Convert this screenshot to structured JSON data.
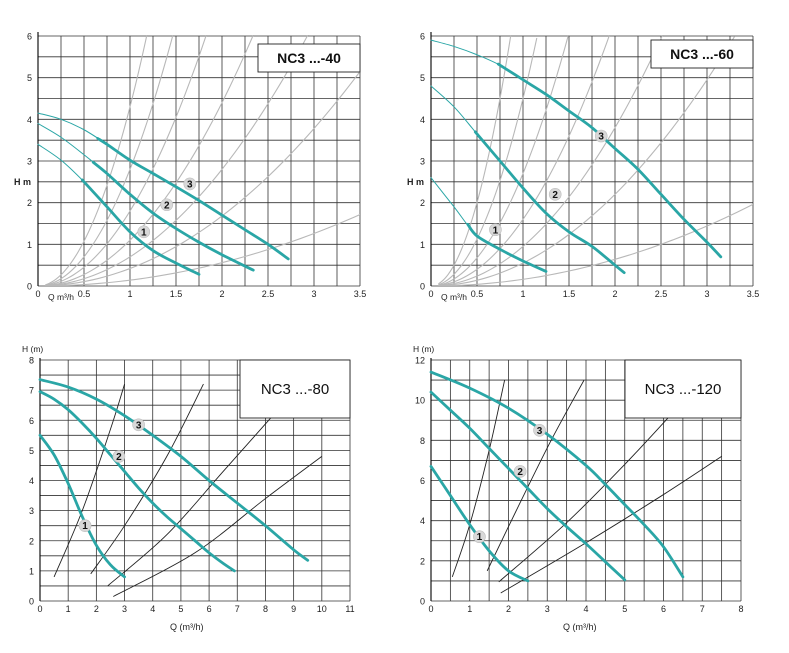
{
  "colors": {
    "curve": "#2aa6a6",
    "grid": "#333333",
    "system": "#b8b8b8",
    "system_dark": "#222222",
    "marker": "#d8d8d8"
  },
  "chart_data": [
    {
      "type": "line",
      "title": "NC3 ...-40",
      "xlabel": "Q m³/h",
      "ylabel": "H m",
      "xlim": [
        0,
        3.5
      ],
      "ylim": [
        0,
        6
      ],
      "xticks": [
        "0",
        "0.5",
        "1",
        "1.5",
        "2",
        "2.5",
        "3",
        "3.5"
      ],
      "yticks": [
        "0",
        "1",
        "2",
        "3",
        "4",
        "5",
        "6"
      ],
      "series": [
        {
          "name": "1",
          "x": [
            0.0,
            0.25,
            0.5,
            0.75,
            1.0,
            1.25,
            1.5,
            1.75
          ],
          "y": [
            3.4,
            3.02,
            2.5,
            1.9,
            1.3,
            0.85,
            0.55,
            0.28
          ],
          "bold_from": 0.5,
          "label_at": [
            1.15,
            1.3
          ]
        },
        {
          "name": "2",
          "x": [
            0.0,
            0.25,
            0.5,
            0.75,
            1.0,
            1.25,
            1.5,
            1.75,
            2.0,
            2.34
          ],
          "y": [
            3.9,
            3.57,
            3.15,
            2.7,
            2.2,
            1.75,
            1.38,
            1.05,
            0.75,
            0.38
          ],
          "bold_from": 0.6,
          "label_at": [
            1.4,
            1.95
          ]
        },
        {
          "name": "3",
          "x": [
            0.0,
            0.25,
            0.5,
            0.75,
            1.0,
            1.25,
            1.5,
            1.75,
            2.0,
            2.25,
            2.5,
            2.72
          ],
          "y": [
            4.15,
            4.0,
            3.75,
            3.4,
            3.02,
            2.7,
            2.38,
            2.05,
            1.7,
            1.35,
            1.0,
            0.65
          ],
          "bold_from": 0.65,
          "label_at": [
            1.65,
            2.45
          ]
        }
      ],
      "system_curves": [
        {
          "k": 4.3,
          "x_max": 1.25
        },
        {
          "k": 2.8,
          "x_max": 1.6
        },
        {
          "k": 1.8,
          "x_max": 1.9
        },
        {
          "k": 1.1,
          "x_max": 2.4
        },
        {
          "k": 0.7,
          "x_max": 2.95
        },
        {
          "k": 0.42,
          "x_max": 3.55
        },
        {
          "k": 0.14,
          "x_max": 3.55
        }
      ]
    },
    {
      "type": "line",
      "title": "NC3 ...-60",
      "xlabel": "Q m³/h",
      "ylabel": "H m",
      "xlim": [
        0,
        3.5
      ],
      "ylim": [
        0,
        6
      ],
      "xticks": [
        "0",
        "0.5",
        "1",
        "1.5",
        "2",
        "2.5",
        "3",
        "3.5"
      ],
      "yticks": [
        "0",
        "1",
        "2",
        "3",
        "4",
        "5",
        "6"
      ],
      "series": [
        {
          "name": "1",
          "x": [
            0.0,
            0.25,
            0.5,
            0.75,
            1.0,
            1.25
          ],
          "y": [
            2.6,
            1.9,
            1.2,
            0.88,
            0.6,
            0.35
          ],
          "bold_from": 0.4,
          "label_at": [
            0.7,
            1.35
          ]
        },
        {
          "name": "2",
          "x": [
            0.0,
            0.25,
            0.5,
            0.75,
            1.0,
            1.25,
            1.5,
            1.75,
            2.0,
            2.1
          ],
          "y": [
            4.8,
            4.3,
            3.65,
            3.0,
            2.35,
            1.75,
            1.3,
            0.95,
            0.5,
            0.32
          ],
          "bold_from": 0.5,
          "label_at": [
            1.35,
            2.2
          ]
        },
        {
          "name": "3",
          "x": [
            0.0,
            0.25,
            0.5,
            0.75,
            1.0,
            1.25,
            1.5,
            1.75,
            2.0,
            2.25,
            2.5,
            2.75,
            3.0,
            3.15
          ],
          "y": [
            5.9,
            5.75,
            5.55,
            5.3,
            4.95,
            4.6,
            4.2,
            3.8,
            3.3,
            2.8,
            2.2,
            1.6,
            1.05,
            0.7
          ],
          "bold_from": 0.75,
          "label_at": [
            1.85,
            3.6
          ]
        }
      ],
      "system_curves": [
        {
          "k": 8.0,
          "x_max": 0.88
        },
        {
          "k": 4.5,
          "x_max": 1.15
        },
        {
          "k": 2.7,
          "x_max": 1.5
        },
        {
          "k": 1.6,
          "x_max": 1.95
        },
        {
          "k": 0.95,
          "x_max": 2.55
        },
        {
          "k": 0.55,
          "x_max": 3.3
        },
        {
          "k": 0.16,
          "x_max": 3.55
        }
      ]
    },
    {
      "type": "line",
      "title": "NC3 ...-80",
      "xlabel": "Q (m³/h)",
      "ylabel": "H (m)",
      "xlim": [
        0,
        11
      ],
      "ylim": [
        0,
        8
      ],
      "xticks": [
        "0",
        "1",
        "2",
        "3",
        "4",
        "5",
        "6",
        "7",
        "8",
        "9",
        "10",
        "11"
      ],
      "yticks": [
        "0",
        "1",
        "2",
        "3",
        "4",
        "5",
        "6",
        "7",
        "8"
      ],
      "series": [
        {
          "name": "1",
          "x": [
            0.0,
            0.5,
            1.0,
            1.5,
            2.0,
            2.5,
            3.0
          ],
          "y": [
            5.5,
            4.85,
            3.9,
            2.8,
            1.85,
            1.2,
            0.8
          ],
          "bold_from": 0,
          "label_at": [
            1.6,
            2.5
          ]
        },
        {
          "name": "2",
          "x": [
            0.0,
            0.5,
            1.0,
            1.5,
            2.0,
            2.5,
            3.0,
            3.5,
            4.0,
            4.5,
            5.0,
            5.5,
            6.0,
            6.5,
            6.9
          ],
          "y": [
            6.95,
            6.7,
            6.35,
            5.9,
            5.4,
            4.85,
            4.3,
            3.75,
            3.25,
            2.8,
            2.4,
            2.0,
            1.6,
            1.25,
            1.0
          ],
          "bold_from": 0,
          "label_at": [
            2.8,
            4.8
          ]
        },
        {
          "name": "3",
          "x": [
            0.0,
            1.0,
            2.0,
            3.0,
            4.0,
            5.0,
            6.0,
            7.0,
            8.0,
            9.0,
            9.5
          ],
          "y": [
            7.35,
            7.1,
            6.7,
            6.15,
            5.5,
            4.8,
            4.0,
            3.25,
            2.5,
            1.7,
            1.35
          ],
          "bold_from": 0,
          "label_at": [
            3.5,
            5.85
          ]
        }
      ],
      "system_curves": [
        {
          "x": [
            0.5,
            1.5,
            2.5,
            3.0
          ],
          "y": [
            0.8,
            3.0,
            5.7,
            7.2
          ]
        },
        {
          "x": [
            1.8,
            3.0,
            4.5,
            5.8
          ],
          "y": [
            0.9,
            2.5,
            4.8,
            7.2
          ]
        },
        {
          "x": [
            2.4,
            4.5,
            6.5,
            8.4
          ],
          "y": [
            0.5,
            2.2,
            4.3,
            6.3
          ]
        },
        {
          "x": [
            2.6,
            5.5,
            8.0,
            10.0
          ],
          "y": [
            0.15,
            1.6,
            3.4,
            4.8
          ]
        }
      ]
    },
    {
      "type": "line",
      "title": "NC3 ...-120",
      "xlabel": "Q (m³/h)",
      "ylabel": "H (m)",
      "xlim": [
        0,
        8
      ],
      "ylim": [
        0,
        12
      ],
      "xticks": [
        "0",
        "1",
        "2",
        "3",
        "4",
        "5",
        "6",
        "7",
        "8"
      ],
      "yticks": [
        "0",
        "2",
        "4",
        "6",
        "8",
        "10",
        "12"
      ],
      "series": [
        {
          "name": "1",
          "x": [
            0.0,
            0.5,
            1.0,
            1.5,
            2.0,
            2.5
          ],
          "y": [
            6.7,
            5.25,
            3.8,
            2.5,
            1.5,
            1.0
          ],
          "bold_from": 0,
          "label_at": [
            1.25,
            3.2
          ]
        },
        {
          "name": "2",
          "x": [
            0.0,
            0.5,
            1.0,
            1.5,
            2.0,
            2.5,
            3.0,
            3.5,
            4.0,
            4.5,
            5.0
          ],
          "y": [
            10.4,
            9.5,
            8.6,
            7.6,
            6.6,
            5.6,
            4.6,
            3.7,
            2.85,
            1.95,
            1.05
          ],
          "bold_from": 0,
          "label_at": [
            2.3,
            6.45
          ]
        },
        {
          "name": "3",
          "x": [
            0.0,
            1.0,
            2.0,
            3.0,
            4.0,
            4.5,
            5.0,
            5.5,
            6.0,
            6.5
          ],
          "y": [
            11.4,
            10.6,
            9.6,
            8.3,
            6.75,
            5.8,
            4.8,
            3.8,
            2.7,
            1.2
          ],
          "bold_from": 0,
          "label_at": [
            2.8,
            8.5
          ]
        }
      ],
      "system_curves": [
        {
          "x": [
            0.55,
            1.0,
            1.5,
            1.9
          ],
          "y": [
            1.2,
            3.8,
            7.5,
            11.0
          ]
        },
        {
          "x": [
            1.45,
            2.2,
            3.1,
            3.95
          ],
          "y": [
            1.5,
            4.5,
            8.0,
            11.0
          ]
        },
        {
          "x": [
            1.75,
            3.5,
            5.0,
            6.3
          ],
          "y": [
            0.95,
            3.9,
            6.8,
            9.5
          ]
        },
        {
          "x": [
            1.8,
            4.0,
            6.0,
            7.5
          ],
          "y": [
            0.4,
            2.9,
            5.3,
            7.2
          ]
        }
      ]
    }
  ]
}
